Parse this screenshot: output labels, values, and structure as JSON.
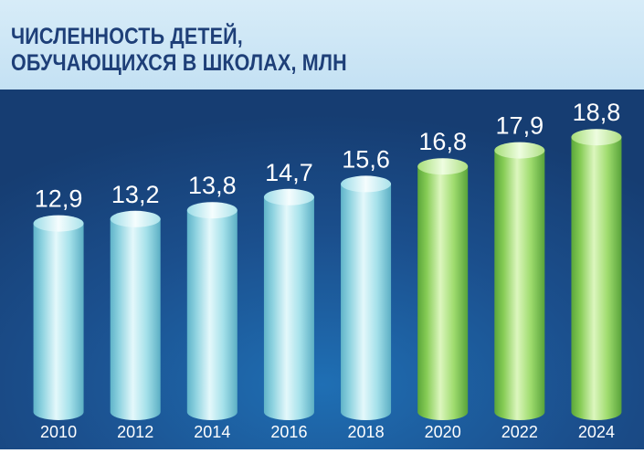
{
  "chart_data": {
    "type": "bar",
    "title_lines": [
      "ЧИСЛЕННОСТЬ ДЕТЕЙ,",
      "ОБУЧАЮЩИХСЯ В ШКОЛАХ, МЛН"
    ],
    "categories": [
      "2010",
      "2012",
      "2014",
      "2016",
      "2018",
      "2020",
      "2022",
      "2024"
    ],
    "values": [
      12.9,
      13.2,
      13.8,
      14.7,
      15.6,
      16.8,
      17.9,
      18.8
    ],
    "value_labels": [
      "12,9",
      "13,2",
      "13,8",
      "14,7",
      "15,6",
      "16,8",
      "17,9",
      "18,8"
    ],
    "highlight": [
      false,
      false,
      false,
      false,
      false,
      true,
      true,
      true
    ],
    "colors": {
      "blue_bar": "#9fdde8",
      "green_bar": "#8fd45a",
      "background": "#1d4d86"
    },
    "xlabel": "",
    "ylabel": "",
    "grid": false,
    "legend": "none"
  }
}
